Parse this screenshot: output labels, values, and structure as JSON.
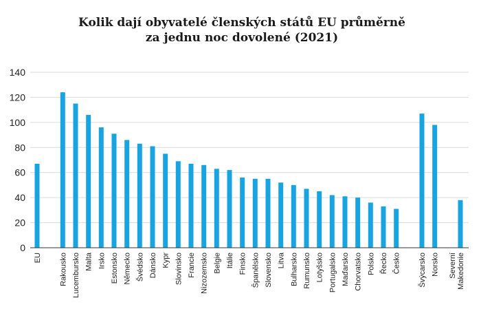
{
  "chart_data": {
    "type": "bar",
    "title_lines": [
      "Kolik dají obyvatelé členských států EU průměrně",
      "za jednu noc dovolené (2021)"
    ],
    "xlabel": "",
    "ylabel": "",
    "ylim": [
      0,
      140
    ],
    "yticks": [
      0,
      20,
      40,
      60,
      80,
      100,
      120,
      140
    ],
    "grid": true,
    "bar_color": "#18a4e0",
    "highlight_label_color": "#e03a3a",
    "categories": [
      {
        "label": "EU",
        "value": 67
      },
      {
        "label": "",
        "value": null
      },
      {
        "label": "Rakousko",
        "value": 124
      },
      {
        "label": "Lucembursko",
        "value": 115
      },
      {
        "label": "Malta",
        "value": 106
      },
      {
        "label": "Irsko",
        "value": 96
      },
      {
        "label": "Estonsko",
        "value": 91
      },
      {
        "label": "Německo",
        "value": 86
      },
      {
        "label": "Švédsko",
        "value": 83
      },
      {
        "label": "Dánsko",
        "value": 81
      },
      {
        "label": "Kypr",
        "value": 75
      },
      {
        "label": "Slovinsko",
        "value": 69
      },
      {
        "label": "Francie",
        "value": 67
      },
      {
        "label": "Nizozemsko",
        "value": 66
      },
      {
        "label": "Belgie",
        "value": 63
      },
      {
        "label": "Itálie",
        "value": 62
      },
      {
        "label": "Finsko",
        "value": 56
      },
      {
        "label": "Španělsko",
        "value": 55
      },
      {
        "label": "Slovensko",
        "value": 55
      },
      {
        "label": "Litva",
        "value": 52
      },
      {
        "label": "Bulharsko",
        "value": 50
      },
      {
        "label": "Rumunsko",
        "value": 47
      },
      {
        "label": "Lotyšsko",
        "value": 45
      },
      {
        "label": "Portugalsko",
        "value": 42
      },
      {
        "label": "Maďarsko",
        "value": 41
      },
      {
        "label": "Chorvatsko",
        "value": 40
      },
      {
        "label": "Polsko",
        "value": 36
      },
      {
        "label": "Řecko",
        "value": 33
      },
      {
        "label": "Česko",
        "value": 31,
        "highlight": true
      },
      {
        "label": "",
        "value": null
      },
      {
        "label": "Švýcarsko",
        "value": 107
      },
      {
        "label": "Norsko",
        "value": 98
      },
      {
        "label": "",
        "value": null
      },
      {
        "label": "Severní Makedonie",
        "value": 38,
        "label_lines": [
          "Severní",
          "Makedonie"
        ]
      }
    ]
  }
}
